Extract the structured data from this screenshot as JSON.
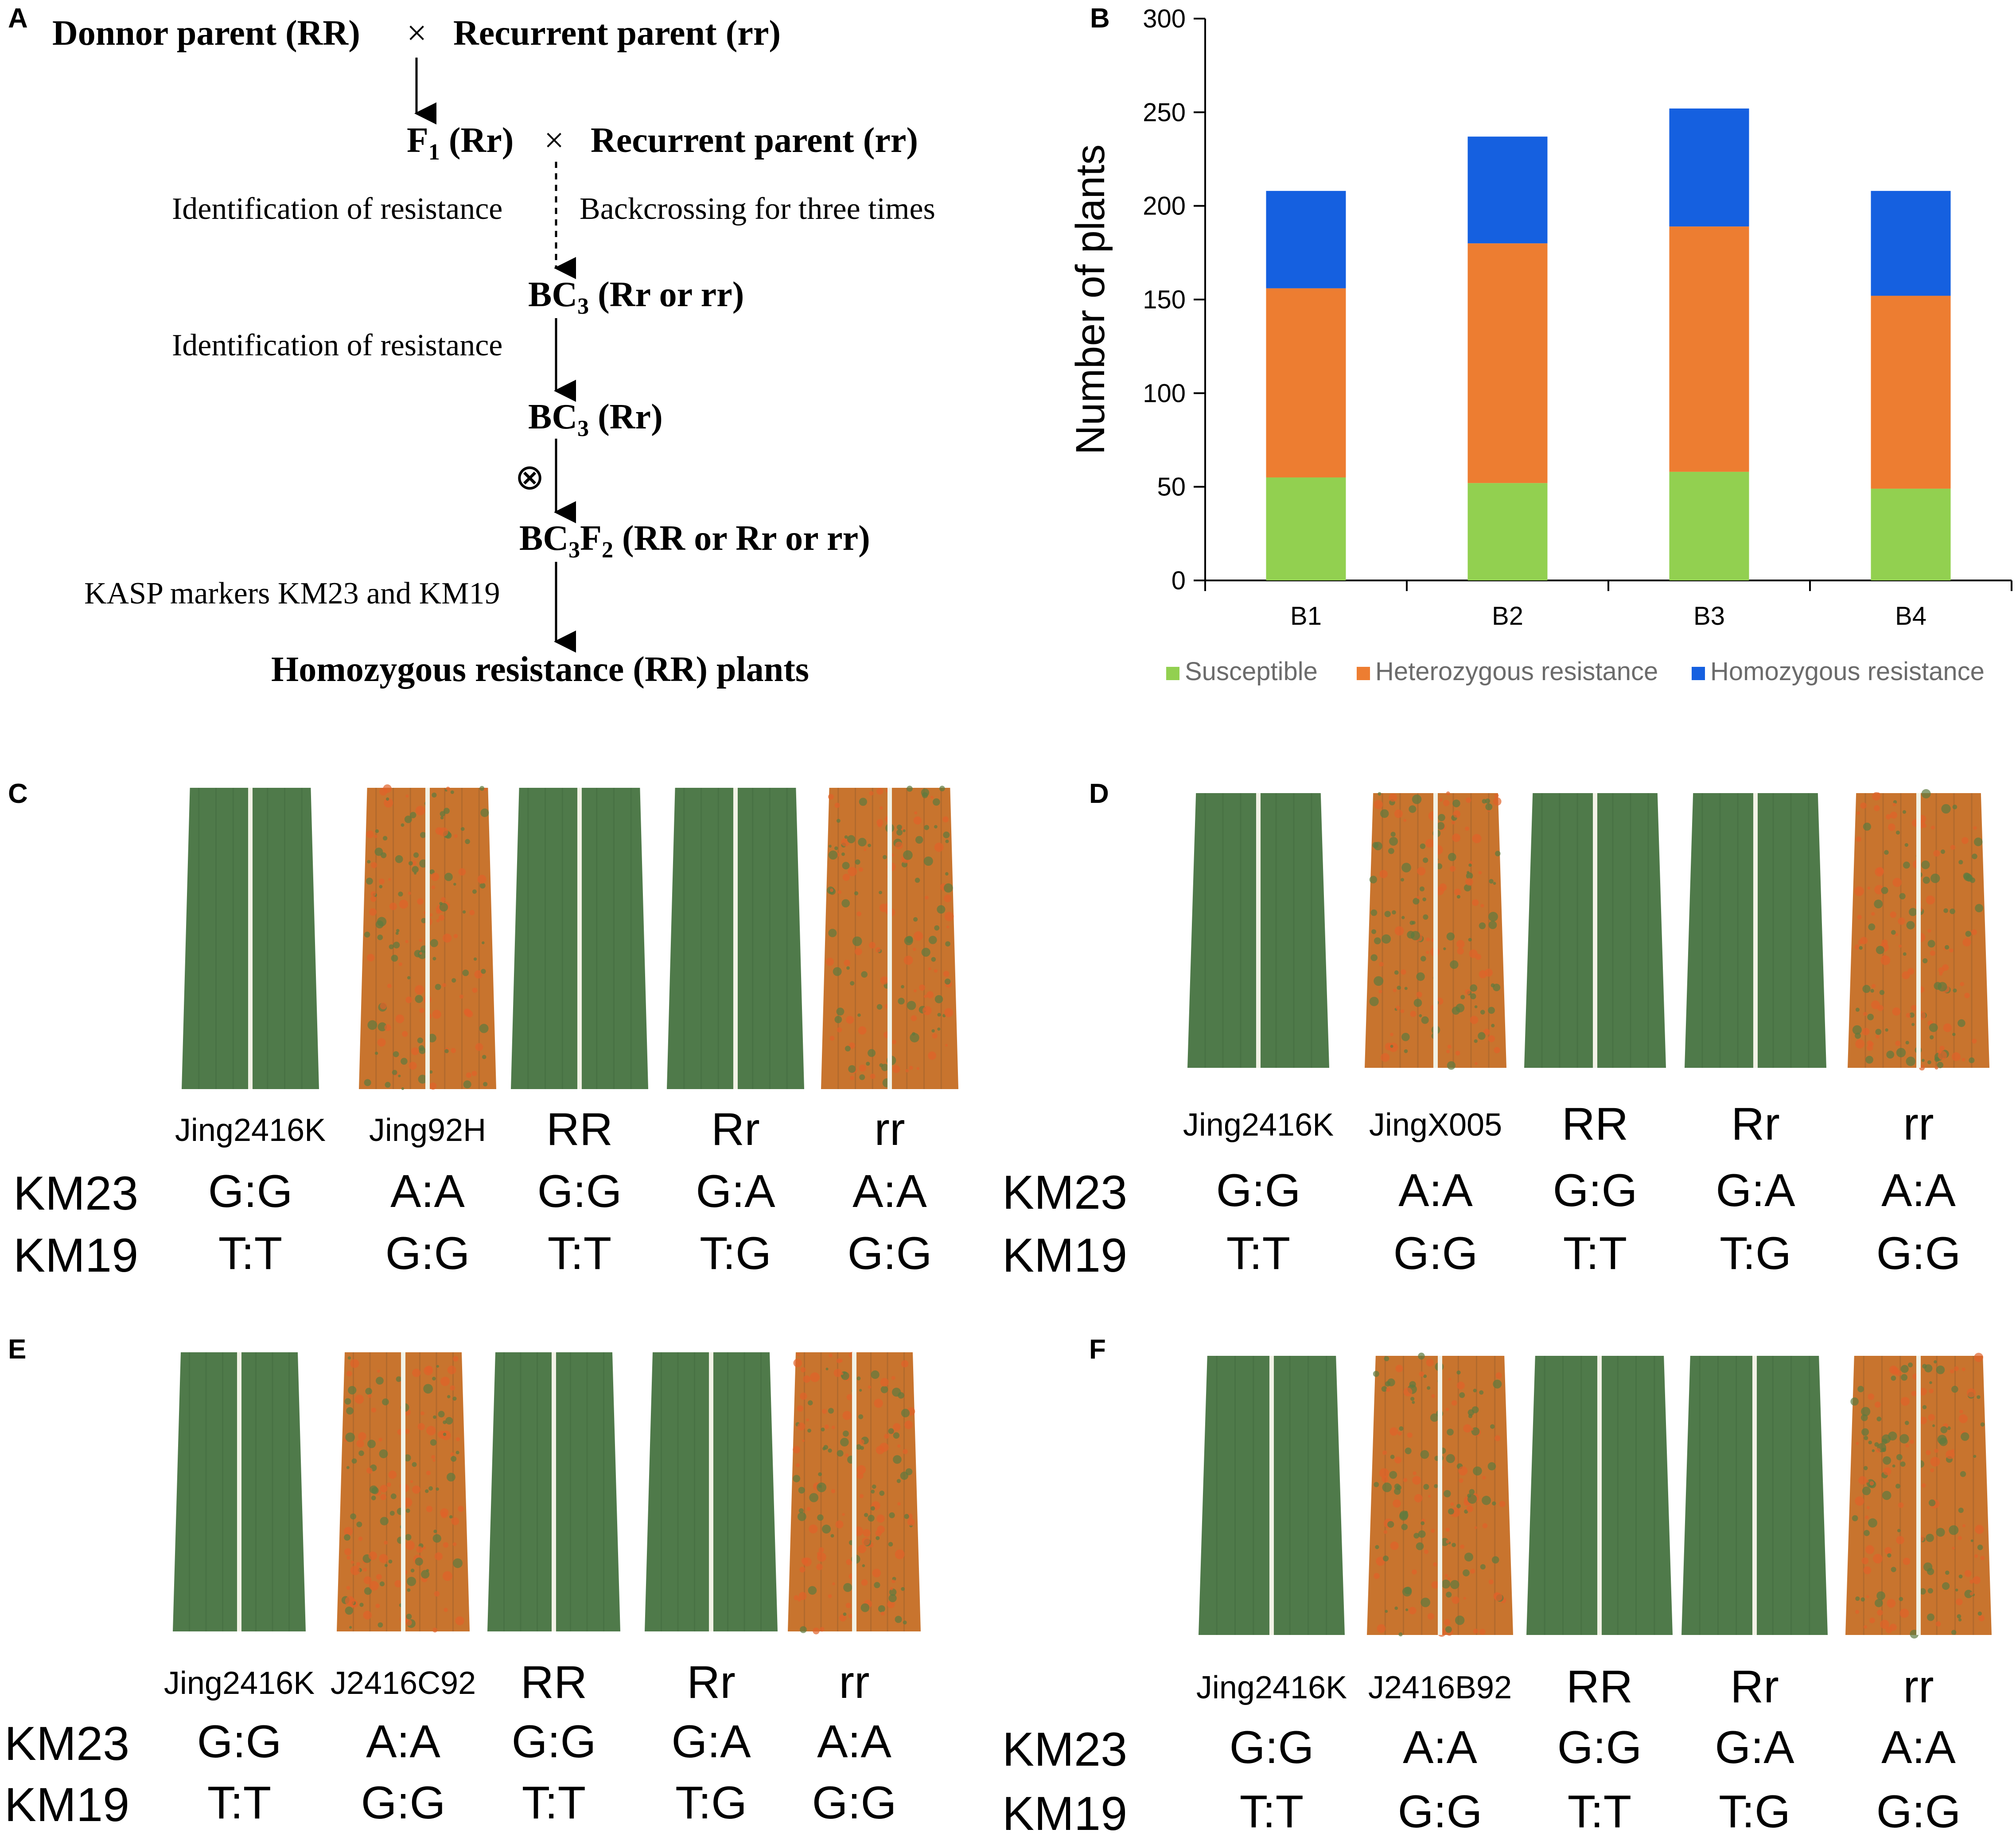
{
  "panels": {
    "a": {
      "letter": "A",
      "step1_left": "Donnor parent (RR)",
      "cross": "×",
      "step1_right": "Recurrent parent (rr)",
      "step2_f": "F",
      "step2_f_sub": "1",
      "step2_rest": " (Rr)",
      "step2_right": "Recurrent parent (rr)",
      "note_left_1": "Identification of resistance",
      "note_right_1": "Backcrossing for three times",
      "step3_bc": "BC",
      "step3_bc_sub": "3",
      "step3_rest": " (Rr or rr)",
      "note_left_2": "Identification of resistance",
      "step4_bc": "BC",
      "step4_bc_sub": "3",
      "step4_rest": " (Rr)",
      "self_symbol": "⊗",
      "step5_bc": "BC",
      "step5_bc_sub": "3",
      "step5_f": "F",
      "step5_f_sub": "2",
      "step5_rest": " (RR or Rr or rr)",
      "note_left_3": "KASP markers KM23 and KM19",
      "final": "Homozygous resistance (RR) plants"
    },
    "b": {
      "letter": "B"
    },
    "c": {
      "letter": "C",
      "leaf_colors": [
        "healthy",
        "rusted",
        "healthy",
        "healthy",
        "rusted"
      ],
      "columns": [
        "Jing2416K",
        "Jing92H",
        "RR",
        "Rr",
        "rr"
      ],
      "km23": [
        "G:G",
        "A:A",
        "G:G",
        "G:A",
        "A:A"
      ],
      "km19": [
        "T:T",
        "G:G",
        "T:T",
        "T:G",
        "G:G"
      ]
    },
    "d": {
      "letter": "D",
      "leaf_colors": [
        "healthy",
        "rusted",
        "healthy",
        "healthy",
        "rusted"
      ],
      "columns": [
        "Jing2416K",
        "JingX005",
        "RR",
        "Rr",
        "rr"
      ],
      "km23": [
        "G:G",
        "A:A",
        "G:G",
        "G:A",
        "A:A"
      ],
      "km19": [
        "T:T",
        "G:G",
        "T:T",
        "T:G",
        "G:G"
      ]
    },
    "e": {
      "letter": "E",
      "leaf_colors": [
        "healthy",
        "rusted",
        "healthy",
        "healthy",
        "rusted"
      ],
      "columns": [
        "Jing2416K",
        "J2416C92",
        "RR",
        "Rr",
        "rr"
      ],
      "km23": [
        "G:G",
        "A:A",
        "G:G",
        "G:A",
        "A:A"
      ],
      "km19": [
        "T:T",
        "G:G",
        "T:T",
        "T:G",
        "G:G"
      ]
    },
    "f": {
      "letter": "F",
      "leaf_colors": [
        "healthy",
        "rusted",
        "healthy",
        "healthy",
        "rusted"
      ],
      "columns": [
        "Jing2416K",
        "J2416B92",
        "RR",
        "Rr",
        "rr"
      ],
      "km23": [
        "G:G",
        "A:A",
        "G:G",
        "G:A",
        "A:A"
      ],
      "km19": [
        "T:T",
        "G:G",
        "T:T",
        "T:G",
        "G:G"
      ]
    }
  },
  "marker_labels": {
    "km23": "KM23",
    "km19": "KM19"
  },
  "colors": {
    "susceptible": "#92D050",
    "heterozygous": "#ED7D31",
    "homozygous": "#1560E0",
    "leaf_green": "#4f7a4a",
    "leaf_rust": "#c8742e"
  },
  "chart_data": {
    "type": "bar",
    "stacked": true,
    "categories": [
      "B1",
      "B2",
      "B3",
      "B4"
    ],
    "series": [
      {
        "name": "Susceptible",
        "values": [
          55,
          52,
          58,
          49
        ]
      },
      {
        "name": "Heterozygous resistance",
        "values": [
          101,
          128,
          131,
          103
        ]
      },
      {
        "name": "Homozygous resistance",
        "values": [
          52,
          57,
          63,
          56
        ]
      }
    ],
    "ylabel": "Number of plants",
    "ylim": [
      0,
      300
    ],
    "yticks": [
      0,
      50,
      100,
      150,
      200,
      250,
      300
    ],
    "legend_position": "bottom"
  }
}
